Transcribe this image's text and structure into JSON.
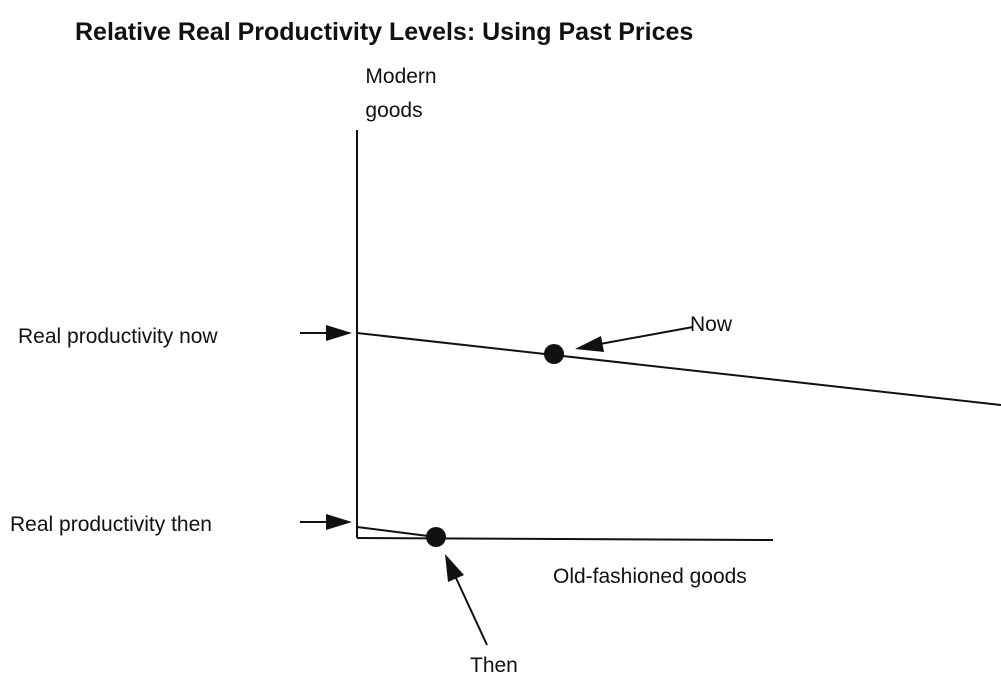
{
  "title": "Relative Real Productivity Levels: Using Past Prices",
  "y_axis_label": [
    "Modern",
    "goods"
  ],
  "x_axis_label": "Old-fashioned goods",
  "labels": {
    "now_level": "Real productivity now",
    "then_level": "Real productivity then",
    "now_point": "Now",
    "then_point": "Then"
  }
}
